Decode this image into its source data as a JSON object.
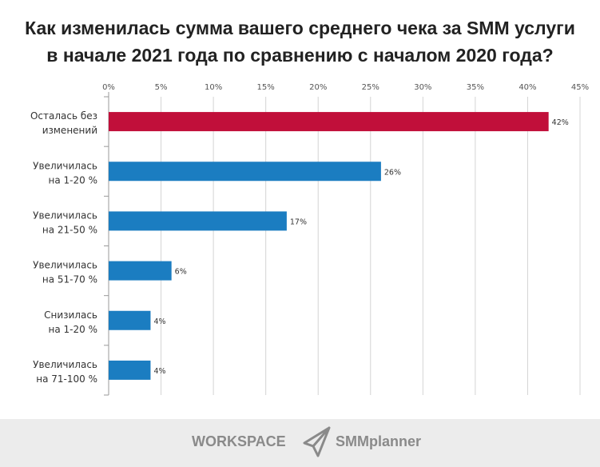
{
  "chart_data": {
    "type": "bar",
    "orientation": "horizontal",
    "title": "Как изменилась сумма вашего среднего чека за SMM услуги в начале 2021 года по сравнению с началом 2020 года?",
    "title_lines": [
      "Как изменилась сумма вашего среднего чека за SMM услуги",
      "в начале 2021 года по сравнению с началом 2020 года?"
    ],
    "categories": [
      [
        "Осталась без",
        "изменений"
      ],
      [
        "Увеличилась",
        "на 1-20 %"
      ],
      [
        "Увеличилась",
        "на 21-50 %"
      ],
      [
        "Увеличилась",
        "на 51-70 %"
      ],
      [
        "Снизилась",
        "на 1-20 %"
      ],
      [
        "Увеличилась",
        "на 71-100 %"
      ]
    ],
    "values": [
      42,
      26,
      17,
      6,
      4,
      4
    ],
    "data_labels": [
      "42%",
      "26%",
      "17%",
      "6%",
      "4%",
      "4%"
    ],
    "colors": [
      "#c10f3a",
      "#1b7dc1",
      "#1b7dc1",
      "#1b7dc1",
      "#1b7dc1",
      "#1b7dc1"
    ],
    "xlim": [
      0,
      45
    ],
    "xticks": [
      "0%",
      "5%",
      "10%",
      "15%",
      "20%",
      "25%",
      "30%",
      "35%",
      "40%",
      "45%"
    ],
    "x_axis_position": "top",
    "grid": true
  },
  "footer": {
    "logo1": "WORKSPACE",
    "logo2": "SMMplanner"
  }
}
